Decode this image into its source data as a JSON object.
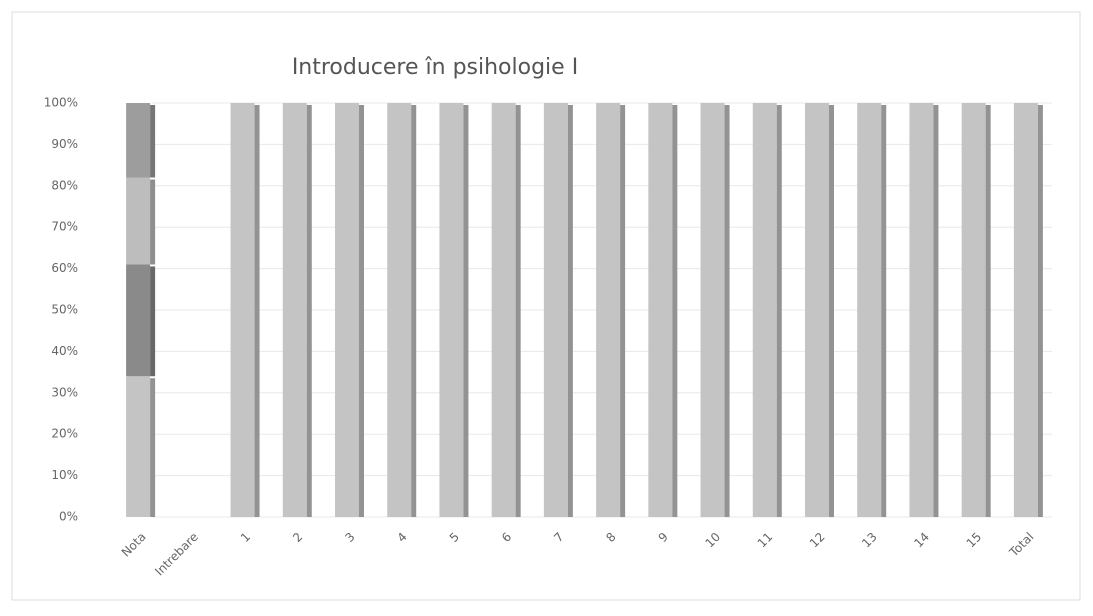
{
  "chart_data": {
    "type": "stacked_bar",
    "title": "Introducere în psihologie I",
    "categories": [
      "Nota",
      "Intrebare",
      "1",
      "2",
      "3",
      "4",
      "5",
      "6",
      "7",
      "8",
      "9",
      "10",
      "11",
      "12",
      "13",
      "14",
      "15",
      "Total"
    ],
    "series": [
      {
        "color": "#c4c4c4",
        "values": [
          34,
          null,
          100,
          100,
          100,
          100,
          100,
          100,
          100,
          100,
          100,
          100,
          100,
          100,
          100,
          100,
          100,
          100
        ]
      },
      {
        "color": "#8a8a8a",
        "values": [
          27,
          null,
          0,
          0,
          0,
          0,
          0,
          0,
          0,
          0,
          0,
          0,
          0,
          0,
          0,
          0,
          0,
          0
        ]
      },
      {
        "color": "#bdbdbd",
        "values": [
          21,
          null,
          0,
          0,
          0,
          0,
          0,
          0,
          0,
          0,
          0,
          0,
          0,
          0,
          0,
          0,
          0,
          0
        ]
      },
      {
        "color": "#9d9d9d",
        "values": [
          18,
          null,
          0,
          0,
          0,
          0,
          0,
          0,
          0,
          0,
          0,
          0,
          0,
          0,
          0,
          0,
          0,
          0
        ]
      }
    ],
    "ylim": [
      0,
      100
    ],
    "yticks": [
      {
        "value": 0,
        "label": "0%"
      },
      {
        "value": 10,
        "label": "10%"
      },
      {
        "value": 20,
        "label": "20%"
      },
      {
        "value": 30,
        "label": "30%"
      },
      {
        "value": 40,
        "label": "40%"
      },
      {
        "value": 50,
        "label": "50%"
      },
      {
        "value": 60,
        "label": "60%"
      },
      {
        "value": 70,
        "label": "70%"
      },
      {
        "value": 80,
        "label": "80%"
      },
      {
        "value": 90,
        "label": "90%"
      },
      {
        "value": 100,
        "label": "100%"
      }
    ],
    "grid": true
  }
}
